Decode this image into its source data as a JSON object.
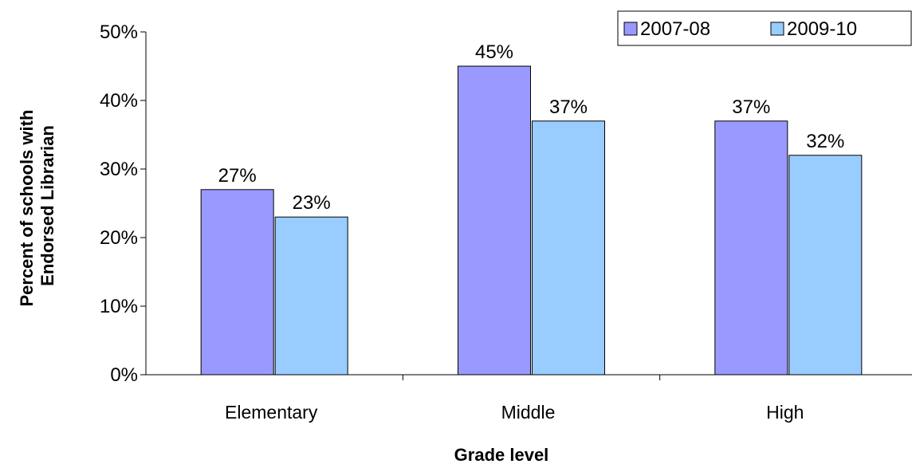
{
  "chart_data": {
    "type": "bar",
    "title": "",
    "xlabel": "Grade level",
    "ylabel_lines": [
      "Percent of schools with",
      "Endorsed Librarian"
    ],
    "categories": [
      "Elementary",
      "Middle",
      "High"
    ],
    "series": [
      {
        "name": "2007-08",
        "values": [
          27,
          45,
          37
        ],
        "labels": [
          "27%",
          "45%",
          "37%"
        ],
        "color": "#9999ff"
      },
      {
        "name": "2009-10",
        "values": [
          23,
          37,
          32
        ],
        "labels": [
          "23%",
          "37%",
          "32%"
        ],
        "color": "#99ccff"
      }
    ],
    "ylim": [
      0,
      50
    ],
    "yticks": [
      0,
      10,
      20,
      30,
      40,
      50
    ],
    "ytick_labels": [
      "0%",
      "10%",
      "20%",
      "30%",
      "40%",
      "50%"
    ],
    "grid": false,
    "legend_position": "top-right"
  }
}
